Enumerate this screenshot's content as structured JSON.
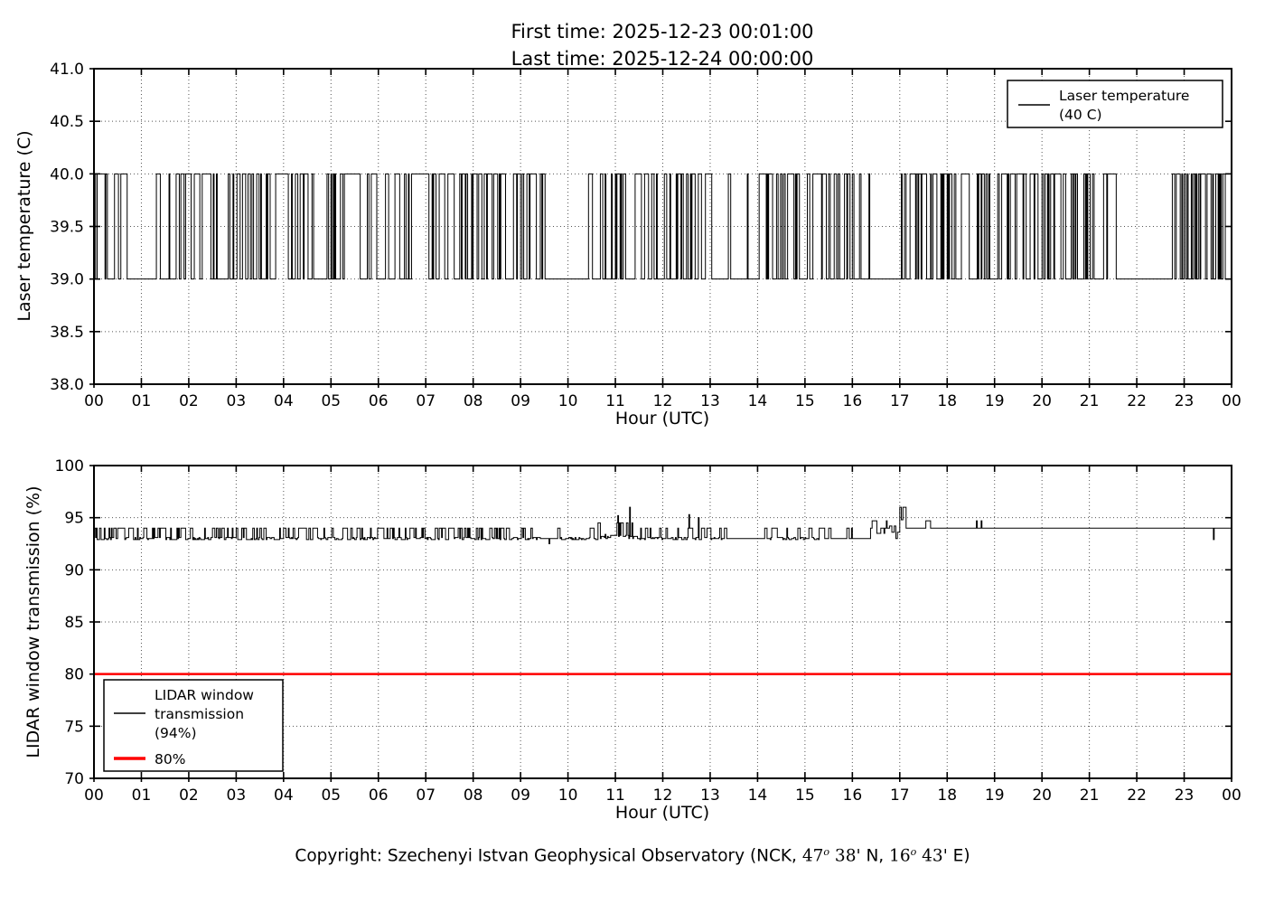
{
  "page": {
    "background": "#ffffff",
    "title_line1": "First time: 2025-12-23 00:01:00",
    "title_line2": "Last time: 2025-12-24 00:00:00"
  },
  "copyright": {
    "full_text": "Copyright: Szechenyi Istvan Geophysical Observatory (NCK, 47° 38' N, 16° 43' E)",
    "parts": [
      {
        "text": "Copyright: Szechenyi Istvan Geophysical Observatory (NCK, ",
        "style": "sans"
      },
      {
        "text": "47",
        "style": "serif"
      },
      {
        "text": "o",
        "style": "sup"
      },
      {
        "text": " 38'",
        "style": "serif"
      },
      {
        "text": " N, ",
        "style": "sans"
      },
      {
        "text": "16",
        "style": "serif"
      },
      {
        "text": "o",
        "style": "sup"
      },
      {
        "text": " 43'",
        "style": "serif"
      },
      {
        "text": " E)",
        "style": "sans"
      }
    ]
  },
  "colors": {
    "line": "#000000",
    "threshold_red": "#ff0000",
    "grid": "#555555",
    "spine": "#000000",
    "background": "#ffffff"
  },
  "chart_data": [
    {
      "type": "line",
      "title": "",
      "xlabel": "Hour (UTC)",
      "ylabel": "Laser temperature (C)",
      "xlim": [
        0,
        24
      ],
      "ylim": [
        38.0,
        41.0
      ],
      "grid": true,
      "xtick_hours": [
        0,
        1,
        2,
        3,
        4,
        5,
        6,
        7,
        8,
        9,
        10,
        11,
        12,
        13,
        14,
        15,
        16,
        17,
        18,
        19,
        20,
        21,
        22,
        23,
        24
      ],
      "xtick_labels": [
        "00",
        "01",
        "02",
        "03",
        "04",
        "05",
        "06",
        "07",
        "08",
        "09",
        "10",
        "11",
        "12",
        "13",
        "14",
        "15",
        "16",
        "17",
        "18",
        "19",
        "20",
        "21",
        "22",
        "23",
        "00"
      ],
      "ytick_values": [
        38.0,
        38.5,
        39.0,
        39.5,
        40.0,
        40.5,
        41.0
      ],
      "ytick_labels": [
        "38.0",
        "38.5",
        "39.0",
        "39.5",
        "40.0",
        "40.5",
        "41.0"
      ],
      "legend": {
        "position": "upper-right",
        "label_lines": [
          "Laser temperature",
          "(40 C)"
        ],
        "color": "#000000"
      },
      "series": [
        {
          "name": "Laser temperature (40 C)",
          "color": "#000000",
          "sample_minutes": 1,
          "low": 39.0,
          "high": 40.0,
          "description": "Square-wave telegraph signal toggling between 39 C and 40 C roughly every few minutes; flat at 39 C during quiet periods listed in segments.",
          "segments": [
            {
              "t0": 0.017,
              "t1": 0.74,
              "mode": "osc",
              "duty": 0.5
            },
            {
              "t0": 0.74,
              "t1": 1.0,
              "mode": "flat",
              "value": 39.0
            },
            {
              "t0": 1.0,
              "t1": 9.5,
              "mode": "osc",
              "duty": 0.5
            },
            {
              "t0": 9.5,
              "t1": 10.3,
              "mode": "flat",
              "value": 39.0
            },
            {
              "t0": 10.3,
              "t1": 10.55,
              "mode": "osc",
              "duty": 0.3
            },
            {
              "t0": 10.55,
              "t1": 13.05,
              "mode": "osc",
              "duty": 0.5
            },
            {
              "t0": 13.05,
              "t1": 13.38,
              "mode": "flat",
              "value": 39.0
            },
            {
              "t0": 13.38,
              "t1": 13.43,
              "mode": "osc",
              "duty": 0.6
            },
            {
              "t0": 13.43,
              "t1": 13.72,
              "mode": "flat",
              "value": 39.0
            },
            {
              "t0": 13.72,
              "t1": 16.35,
              "mode": "osc",
              "duty": 0.5
            },
            {
              "t0": 16.35,
              "t1": 16.98,
              "mode": "flat",
              "value": 39.0
            },
            {
              "t0": 16.98,
              "t1": 21.55,
              "mode": "osc",
              "duty": 0.5
            },
            {
              "t0": 21.55,
              "t1": 22.7,
              "mode": "flat",
              "value": 39.0
            },
            {
              "t0": 22.7,
              "t1": 24.0,
              "mode": "osc",
              "duty": 0.5
            }
          ]
        }
      ]
    },
    {
      "type": "line",
      "title": "",
      "xlabel": "Hour (UTC)",
      "ylabel": "LIDAR window transmission (%)",
      "xlim": [
        0,
        24
      ],
      "ylim": [
        70,
        100
      ],
      "grid": true,
      "xtick_hours": [
        0,
        1,
        2,
        3,
        4,
        5,
        6,
        7,
        8,
        9,
        10,
        11,
        12,
        13,
        14,
        15,
        16,
        17,
        18,
        19,
        20,
        21,
        22,
        23,
        24
      ],
      "xtick_labels": [
        "00",
        "01",
        "02",
        "03",
        "04",
        "05",
        "06",
        "07",
        "08",
        "09",
        "10",
        "11",
        "12",
        "13",
        "14",
        "15",
        "16",
        "17",
        "18",
        "19",
        "20",
        "21",
        "22",
        "23",
        "00"
      ],
      "ytick_values": [
        70,
        75,
        80,
        85,
        90,
        95,
        100
      ],
      "ytick_labels": [
        "70",
        "75",
        "80",
        "85",
        "90",
        "95",
        "100"
      ],
      "legend": {
        "position": "lower-left",
        "entries": [
          {
            "label_lines": [
              "LIDAR window",
              "transmission",
              "(94%)"
            ],
            "color": "#000000",
            "width": 1.5
          },
          {
            "label_lines": [
              "80%"
            ],
            "color": "#ff0000",
            "width": 3.5
          }
        ]
      },
      "series": [
        {
          "name": "LIDAR window transmission (94%)",
          "color": "#000000",
          "sample_minutes": 1,
          "description": "Transmission jitters between ~93% and 94% until ~16:20 UTC, steps up around 16:30-17:00 with spikes to ~96%, then holds flat at 94% until 24:00 with brief bumps and one dip.",
          "segments": [
            {
              "t0": 0.017,
              "t1": 9.4,
              "base": 93.0,
              "spike_to": 94.0,
              "spike_prob": 0.33,
              "jitter": 0.15
            },
            {
              "t0": 9.4,
              "t1": 9.65,
              "base": 93.0,
              "spike_to": 94.0,
              "spike_prob": 0.1,
              "dip_to": 92.5,
              "dip_prob": 0.3
            },
            {
              "t0": 9.65,
              "t1": 10.6,
              "base": 93.0,
              "spike_to": 94.0,
              "spike_prob": 0.15,
              "jitter": 0.1
            },
            {
              "t0": 10.6,
              "t1": 11.5,
              "base": 93.2,
              "spike_to": 94.5,
              "spike_prob": 0.3,
              "jitter": 0.2
            },
            {
              "t0": 11.5,
              "t1": 13.3,
              "base": 93.0,
              "spike_to": 94.0,
              "spike_prob": 0.3,
              "jitter": 0.15
            },
            {
              "t0": 13.3,
              "t1": 14.1,
              "base": 93.0,
              "spike_to": 94.0,
              "spike_prob": 0.1,
              "jitter": 0.05
            },
            {
              "t0": 14.1,
              "t1": 15.3,
              "base": 93.0,
              "spike_to": 94.0,
              "spike_prob": 0.25,
              "jitter": 0.1
            },
            {
              "t0": 15.3,
              "t1": 16.35,
              "base": 93.0,
              "spike_to": 94.0,
              "spike_prob": 0.08,
              "jitter": 0.05
            },
            {
              "t0": 16.35,
              "t1": 16.75,
              "base": 94.0,
              "spike_to": 94.7,
              "spike_prob": 0.35,
              "dip_to": 93.5,
              "dip_prob": 0.1
            },
            {
              "t0": 16.75,
              "t1": 16.97,
              "base": 93.6,
              "spike_to": 94.2,
              "spike_prob": 0.4,
              "dip_to": 93.0,
              "dip_prob": 0.2
            },
            {
              "t0": 16.97,
              "t1": 17.1,
              "base": 94.8,
              "spike_to": 96.0,
              "spike_prob": 0.3
            },
            {
              "t0": 17.1,
              "t1": 24.0,
              "base": 94.0,
              "spike_prob": 0
            }
          ],
          "events": [
            {
              "t": 11.05,
              "v": 95.2
            },
            {
              "t": 11.3,
              "v": 96.0
            },
            {
              "t": 12.55,
              "v": 95.3
            },
            {
              "t": 12.75,
              "v": 95.0
            },
            {
              "t": 17.0,
              "v": 96.0
            },
            {
              "t": 17.55,
              "v": 94.7
            },
            {
              "t": 17.62,
              "v": 94.7
            },
            {
              "t": 18.62,
              "v": 94.7
            },
            {
              "t": 18.72,
              "v": 94.7
            },
            {
              "t": 23.62,
              "v": 92.9
            }
          ]
        }
      ],
      "threshold": {
        "name": "80%",
        "value": 80,
        "color": "#ff0000"
      }
    }
  ]
}
